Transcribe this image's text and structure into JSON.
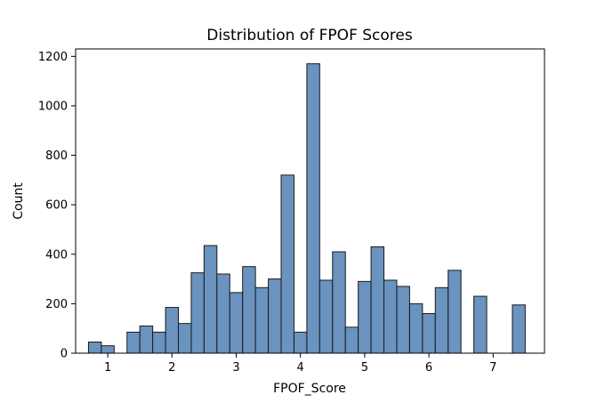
{
  "chart_data": {
    "type": "bar",
    "subtype": "histogram",
    "title": "Distribution of FPOF Scores",
    "xlabel": "FPOF_Score",
    "ylabel": "Count",
    "xlim": [
      0.5,
      7.8
    ],
    "ylim": [
      0,
      1230
    ],
    "xticks": [
      1,
      2,
      3,
      4,
      5,
      6,
      7
    ],
    "yticks": [
      0,
      200,
      400,
      600,
      800,
      1000,
      1200
    ],
    "bin_width": 0.2,
    "bin_start": 0.7,
    "counts": [
      45,
      30,
      0,
      85,
      110,
      85,
      185,
      120,
      325,
      435,
      320,
      245,
      350,
      265,
      300,
      720,
      85,
      1170,
      295,
      410,
      105,
      290,
      430,
      295,
      270,
      200,
      160,
      265,
      335,
      0,
      230,
      0,
      0,
      195
    ],
    "bar_color": "#6A93BF",
    "edge_color": "#1a1a1a"
  }
}
